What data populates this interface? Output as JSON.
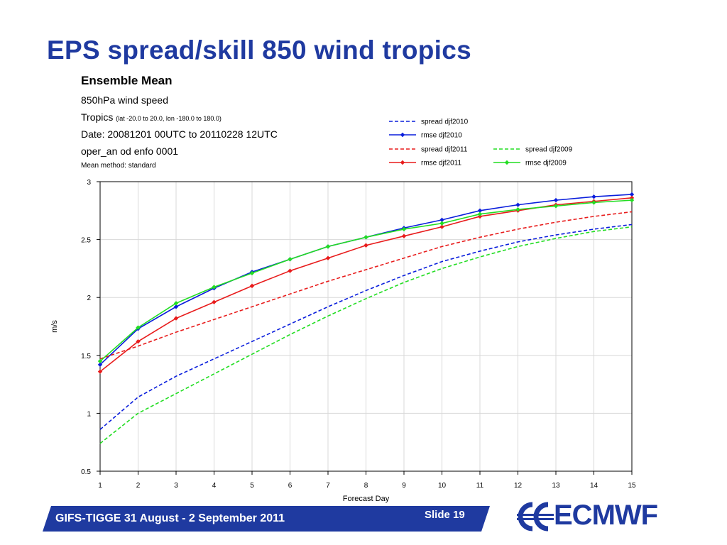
{
  "slide": {
    "title": "EPS spread/skill 850 wind tropics",
    "footer": "GIFS-TIGGE 31 August - 2 September 2011",
    "slide_label": "Slide 19",
    "logo_text": "ECMWF",
    "brand_color": "#1f3aa0"
  },
  "info": {
    "heading": "Ensemble Mean",
    "parameter": "850hPa wind speed",
    "region": "Tropics",
    "region_detail": "(lat  -20.0 to 20.0, lon  -180.0 to  180.0)",
    "date": "Date: 20081201 00UTC to 20110228 12UTC",
    "experiment": "oper_an od enfo 0001",
    "mean_method": "Mean method: standard"
  },
  "chart_data": {
    "type": "line",
    "title": "",
    "xlabel": "Forecast Day",
    "ylabel": "m/s",
    "xlim": [
      1,
      15
    ],
    "ylim": [
      0.5,
      3
    ],
    "x": [
      1,
      2,
      3,
      4,
      5,
      6,
      7,
      8,
      9,
      10,
      11,
      12,
      13,
      14,
      15
    ],
    "xticks": [
      "1",
      "2",
      "3",
      "4",
      "5",
      "6",
      "7",
      "8",
      "9",
      "10",
      "11",
      "12",
      "13",
      "14",
      "15"
    ],
    "yticks": [
      "0.5",
      "1",
      "1.5",
      "2",
      "2.5",
      "3"
    ],
    "ytick_values": [
      0.5,
      1,
      1.5,
      2,
      2.5,
      3
    ],
    "grid": true,
    "legend_placement": "top-right",
    "series": [
      {
        "name": "spread djf2010",
        "color": "#0a1edc",
        "style": "dashed",
        "markers": false,
        "values": [
          0.86,
          1.14,
          1.32,
          1.47,
          1.62,
          1.77,
          1.92,
          2.06,
          2.19,
          2.31,
          2.4,
          2.48,
          2.54,
          2.59,
          2.63
        ]
      },
      {
        "name": "rmse djf2010",
        "color": "#0a1edc",
        "style": "solid",
        "markers": true,
        "values": [
          1.42,
          1.73,
          1.92,
          2.08,
          2.22,
          2.33,
          2.44,
          2.52,
          2.6,
          2.67,
          2.75,
          2.8,
          2.84,
          2.87,
          2.89
        ]
      },
      {
        "name": "spread djf2011",
        "color": "#e81c1c",
        "style": "dashed",
        "markers": false,
        "values": [
          1.47,
          1.58,
          1.7,
          1.81,
          1.92,
          2.03,
          2.14,
          2.24,
          2.34,
          2.44,
          2.52,
          2.59,
          2.65,
          2.7,
          2.74
        ]
      },
      {
        "name": "rmse djf2011",
        "color": "#e81c1c",
        "style": "solid",
        "markers": true,
        "values": [
          1.36,
          1.62,
          1.82,
          1.96,
          2.1,
          2.23,
          2.34,
          2.45,
          2.53,
          2.61,
          2.7,
          2.75,
          2.8,
          2.83,
          2.86
        ]
      },
      {
        "name": "spread djf2009",
        "color": "#22dd22",
        "style": "dashed",
        "markers": false,
        "values": [
          0.74,
          1.0,
          1.17,
          1.34,
          1.51,
          1.68,
          1.84,
          1.99,
          2.13,
          2.25,
          2.35,
          2.44,
          2.51,
          2.57,
          2.61
        ]
      },
      {
        "name": "rmse djf2009",
        "color": "#22dd22",
        "style": "solid",
        "markers": true,
        "values": [
          1.45,
          1.74,
          1.95,
          2.09,
          2.21,
          2.33,
          2.44,
          2.52,
          2.59,
          2.64,
          2.72,
          2.76,
          2.79,
          2.82,
          2.84
        ]
      }
    ]
  }
}
